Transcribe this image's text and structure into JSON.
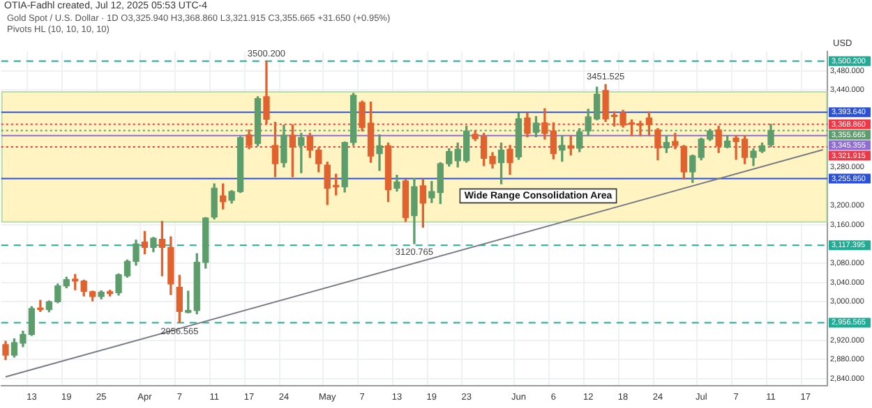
{
  "chart_data": {
    "type": "candlestick",
    "title": "Gold Spot / U.S. Dollar · 1D",
    "subtitle": "O3,325.940 H3,368.860 L3,321.915 C3,355.665 +31.650 (+0.95%)",
    "ylabel": "USD",
    "annotations": [
      "OTIA-Fadhl created, Jul 12, 2025 05:53 UTC-4",
      "Pivots HL (10, 10, 10, 10)",
      {
        "text": "3500.200",
        "y": 3500.2
      },
      {
        "text": "3451.525",
        "y": 3451.525
      },
      {
        "text": "3120.765",
        "y": 3120.765
      },
      {
        "text": "2956.565",
        "y": 2956.565
      }
    ],
    "categories": [
      null,
      null,
      null,
      "13",
      null,
      null,
      null,
      "19",
      null,
      null,
      null,
      "25",
      null,
      null,
      null,
      null,
      "Apr",
      null,
      null,
      null,
      "7",
      null,
      null,
      null,
      "11",
      null,
      null,
      null,
      "17",
      null,
      null,
      null,
      "24",
      null,
      null,
      null,
      null,
      "May",
      null,
      null,
      null,
      "7",
      null,
      null,
      null,
      "13",
      null,
      null,
      null,
      "19",
      null,
      null,
      null,
      "23",
      null,
      null,
      null,
      null,
      null,
      "Jun",
      null,
      null,
      null,
      "6",
      null,
      null,
      null,
      "12",
      null,
      null,
      null,
      "18",
      null,
      null,
      null,
      "24",
      null,
      null,
      null,
      null,
      "Jul",
      null,
      null,
      null,
      "7",
      null,
      null,
      null,
      "11",
      null,
      null,
      null,
      "17",
      null,
      null
    ],
    "ohlc": [
      [
        2911,
        2918,
        2880,
        2889
      ],
      [
        2889,
        2923,
        2885,
        2915
      ],
      [
        2914,
        2939,
        2907,
        2932
      ],
      [
        2932,
        2990,
        2930,
        2986
      ],
      [
        2986,
        3003,
        2980,
        2984
      ],
      [
        2984,
        3002,
        2979,
        3000
      ],
      [
        3000,
        3037,
        2998,
        3033
      ],
      [
        3033,
        3051,
        3029,
        3046
      ],
      [
        3047,
        3057,
        3025,
        3043
      ],
      [
        3043,
        3045,
        3012,
        3022
      ],
      [
        3021,
        3022,
        3002,
        3011
      ],
      [
        3011,
        3023,
        3006,
        3020
      ],
      [
        3021,
        3024,
        3012,
        3017
      ],
      [
        3019,
        3058,
        3014,
        3056
      ],
      [
        3054,
        3087,
        3051,
        3084
      ],
      [
        3084,
        3128,
        3076,
        3120
      ],
      [
        3124,
        3146,
        3100,
        3113
      ],
      [
        3113,
        3134,
        3104,
        3132
      ],
      [
        3130,
        3167,
        3054,
        3113
      ],
      [
        3113,
        3135,
        3015,
        3037
      ],
      [
        3030,
        3055,
        2956.565,
        2980
      ],
      [
        2978,
        3022,
        2977,
        2982
      ],
      [
        2982,
        3100,
        2975,
        3082
      ],
      [
        3082,
        3175,
        3070,
        3174
      ],
      [
        3176,
        3245,
        3172,
        3236
      ],
      [
        3220,
        3245,
        3193,
        3208
      ],
      [
        3211,
        3231,
        3205,
        3229
      ],
      [
        3229,
        3343,
        3227,
        3341
      ],
      [
        3347,
        3357,
        3318,
        3325
      ],
      [
        3329,
        3426,
        3324,
        3422
      ],
      [
        3426,
        3500.2,
        3370,
        3379
      ],
      [
        3325,
        3373,
        3260,
        3287
      ],
      [
        3289,
        3367,
        3280,
        3346
      ],
      [
        3346,
        3368,
        3260,
        3322
      ],
      [
        3325,
        3350,
        3268,
        3341
      ],
      [
        3344,
        3350,
        3300,
        3315
      ],
      [
        3315,
        3320,
        3270,
        3287
      ],
      [
        3284,
        3290,
        3202,
        3236
      ],
      [
        3240,
        3265,
        3222,
        3239
      ],
      [
        3239,
        3332,
        3228,
        3331
      ],
      [
        3331,
        3433,
        3325,
        3429
      ],
      [
        3414,
        3417,
        3355,
        3362
      ],
      [
        3371,
        3415,
        3290,
        3303
      ],
      [
        3308,
        3347,
        3273,
        3324
      ],
      [
        3324,
        3330,
        3208,
        3233
      ],
      [
        3236,
        3263,
        3230,
        3249
      ],
      [
        3251,
        3254,
        3167,
        3175
      ],
      [
        3179,
        3256,
        3120.765,
        3239
      ],
      [
        3241,
        3255,
        3155,
        3205
      ],
      [
        3216,
        3250,
        3206,
        3229
      ],
      [
        3227,
        3289,
        3204,
        3287
      ],
      [
        3287,
        3318,
        3282,
        3312
      ],
      [
        3293,
        3330,
        3280,
        3317
      ],
      [
        3293,
        3365,
        3290,
        3355
      ],
      [
        3348,
        3356,
        3335,
        3339
      ],
      [
        3344,
        3350,
        3283,
        3298
      ],
      [
        3302,
        3310,
        3278,
        3287
      ],
      [
        3289,
        3330,
        3245,
        3315
      ],
      [
        3317,
        3325,
        3265,
        3289
      ],
      [
        3301,
        3392,
        3296,
        3380
      ],
      [
        3382,
        3392,
        3343,
        3350
      ],
      [
        3352,
        3385,
        3343,
        3371
      ],
      [
        3372,
        3401,
        3338,
        3350
      ],
      [
        3355,
        3372,
        3297,
        3308
      ],
      [
        3315,
        3345,
        3292,
        3325
      ],
      [
        3324,
        3345,
        3305,
        3319
      ],
      [
        3319,
        3360,
        3312,
        3353
      ],
      [
        3355,
        3400,
        3345,
        3384
      ],
      [
        3380,
        3446,
        3378,
        3431
      ],
      [
        3439,
        3451.525,
        3375,
        3380
      ],
      [
        3387,
        3395,
        3365,
        3385
      ],
      [
        3393,
        3398,
        3363,
        3367
      ],
      [
        3370,
        3378,
        3346,
        3369
      ],
      [
        3368,
        3375,
        3345,
        3367
      ],
      [
        3382,
        3395,
        3346,
        3368
      ],
      [
        3357,
        3360,
        3295,
        3320
      ],
      [
        3320,
        3345,
        3310,
        3331
      ],
      [
        3333,
        3350,
        3318,
        3325
      ],
      [
        3323,
        3325,
        3255,
        3270
      ],
      [
        3270,
        3305,
        3248,
        3303
      ],
      [
        3300,
        3340,
        3295,
        3338
      ],
      [
        3338,
        3358,
        3335,
        3355
      ],
      [
        3357,
        3365,
        3310,
        3324
      ],
      [
        3322,
        3345,
        3320,
        3334
      ],
      [
        3340,
        3345,
        3296,
        3333
      ],
      [
        3338,
        3345,
        3287,
        3300
      ],
      [
        3300,
        3318,
        3283,
        3313
      ],
      [
        3313,
        3330,
        3310,
        3324
      ],
      [
        3325.94,
        3368.86,
        3321.915,
        3355.665
      ],
      null,
      null,
      null,
      null,
      null,
      null
    ],
    "colors": [
      "#e0622f",
      "#5d9c6b",
      "#5d9c6b",
      "#5d9c6b",
      "#e0622f",
      "#5d9c6b",
      "#5d9c6b",
      "#5d9c6b",
      "#e0622f",
      "#e0622f",
      "#e0622f",
      "#5d9c6b",
      "#e0622f",
      "#5d9c6b",
      "#5d9c6b",
      "#5d9c6b",
      "#e0622f",
      "#5d9c6b",
      "#e0622f",
      "#e0622f",
      "#e0622f",
      "#5d9c6b",
      "#5d9c6b",
      "#5d9c6b",
      "#5d9c6b",
      "#e0622f",
      "#5d9c6b",
      "#5d9c6b",
      "#e0622f",
      "#5d9c6b",
      "#e0622f",
      "#e0622f",
      "#5d9c6b",
      "#e0622f",
      "#5d9c6b",
      "#e0622f",
      "#e0622f",
      "#e0622f",
      "#e0622f",
      "#5d9c6b",
      "#5d9c6b",
      "#e0622f",
      "#e0622f",
      "#5d9c6b",
      "#e0622f",
      "#5d9c6b",
      "#e0622f",
      "#5d9c6b",
      "#e0622f",
      "#5d9c6b",
      "#5d9c6b",
      "#5d9c6b",
      "#5d9c6b",
      "#5d9c6b",
      "#e0622f",
      "#e0622f",
      "#e0622f",
      "#5d9c6b",
      "#e0622f",
      "#5d9c6b",
      "#e0622f",
      "#5d9c6b",
      "#e0622f",
      "#e0622f",
      "#5d9c6b",
      "#e0622f",
      "#5d9c6b",
      "#5d9c6b",
      "#5d9c6b",
      "#e0622f",
      "#e0622f",
      "#e0622f",
      "#e0622f",
      "#e0622f",
      "#e0622f",
      "#e0622f",
      "#5d9c6b",
      "#e0622f",
      "#e0622f",
      "#5d9c6b",
      "#5d9c6b",
      "#5d9c6b",
      "#e0622f",
      "#5d9c6b",
      "#e0622f",
      "#e0622f",
      "#5d9c6b",
      "#5d9c6b",
      "#5d9c6b",
      null,
      null,
      null,
      null,
      null,
      null
    ],
    "series": [
      {
        "type": "line",
        "color": "#787b86",
        "values": [
          2844,
          null,
          null,
          null,
          null,
          null,
          null,
          null,
          null,
          null,
          null,
          null,
          null,
          null,
          null,
          null,
          null,
          null,
          null,
          null,
          null,
          null,
          null,
          null,
          null,
          null,
          null,
          null,
          null,
          null,
          null,
          null,
          null,
          null,
          null,
          null,
          null,
          null,
          null,
          null,
          null,
          null,
          null,
          null,
          null,
          null,
          null,
          null,
          null,
          null,
          null,
          null,
          null,
          null,
          null,
          null,
          null,
          null,
          null,
          null,
          null,
          null,
          null,
          null,
          null,
          null,
          null,
          null,
          null,
          null,
          null,
          null,
          null,
          null,
          null,
          null,
          null,
          null,
          null,
          null,
          null,
          null,
          null,
          null,
          null,
          null,
          null,
          null,
          null,
          null,
          null,
          null,
          null,
          null,
          3316
        ]
      }
    ],
    "ylim": [
      2825,
      3520
    ],
    "yticks": [
      {
        "value": 3480,
        "label": "3,480.000"
      },
      {
        "value": 3440,
        "label": "3,440.000"
      },
      {
        "value": 3280,
        "label": "3,280.000"
      },
      {
        "value": 3200,
        "label": "3,200.000"
      },
      {
        "value": 3160,
        "label": "3,160.000"
      },
      {
        "value": 3080,
        "label": "3,080.000"
      },
      {
        "value": 3040,
        "label": "3,040.000"
      },
      {
        "value": 3000,
        "label": "3,000.000"
      },
      {
        "value": 2920,
        "label": "2,920.000"
      },
      {
        "value": 2880,
        "label": "2,880.000"
      },
      {
        "value": 2840,
        "label": "2,840.000"
      }
    ],
    "grid": true,
    "bands": [
      {
        "axis": "y",
        "from": 3166,
        "to": 3436,
        "label": "Wide Range Consolidation Area",
        "color": "#fff4c2"
      }
    ],
    "ref_lines": [
      {
        "axis": "y",
        "value": 3500.2,
        "label": "3,500.200",
        "color": "#22ab94",
        "line_style": "dashed"
      },
      {
        "axis": "y",
        "value": 3393.64,
        "label": "3,393.640",
        "color": "#2b50d6",
        "line_style": "solid"
      },
      {
        "axis": "y",
        "value": 3368.86,
        "label": "3,368.860",
        "color": "#f23645",
        "line_style": "dotted"
      },
      {
        "axis": "y",
        "value": 3355.665,
        "label": "3,355.665",
        "color": "#5d9c6b",
        "line_style": "dotted"
      },
      {
        "axis": "y",
        "value": 3345.355,
        "label": "3,345.355",
        "color": "#8e6fd1",
        "line_style": "solid"
      },
      {
        "axis": "y",
        "value": 3321.915,
        "label": "3,321.915",
        "color": "#f23645",
        "line_style": "dotted"
      },
      {
        "axis": "y",
        "value": 3255.85,
        "label": "3,255.850",
        "color": "#2b50d6",
        "line_style": "solid"
      },
      {
        "axis": "y",
        "value": 3117.395,
        "label": "3,117.395",
        "color": "#22ab94",
        "line_style": "dashed"
      },
      {
        "axis": "y",
        "value": 2956.565,
        "label": "2,956.565",
        "color": "#22ab94",
        "line_style": "dashed"
      }
    ]
  }
}
